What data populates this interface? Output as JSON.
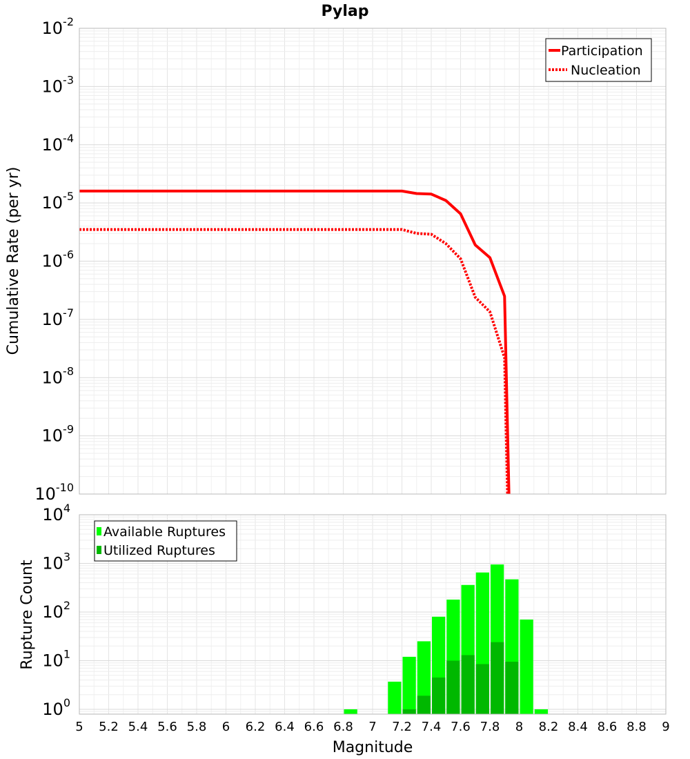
{
  "chart_data": [
    {
      "type": "line",
      "title": "Pylap",
      "xlabel": "",
      "ylabel": "Cumulative Rate (per yr)",
      "xlim": [
        5,
        9
      ],
      "ylim_log10": [
        -10,
        -2
      ],
      "y_tick_exponents": [
        "-10",
        "-9",
        "-8",
        "-7",
        "-6",
        "-5",
        "-4",
        "-3",
        "-2"
      ],
      "legend_position": "top-right",
      "series": [
        {
          "name": "Participation",
          "color": "#ff0000",
          "dash": "solid",
          "x": [
            5.0,
            7.2,
            7.3,
            7.4,
            7.5,
            7.6,
            7.7,
            7.8,
            7.9,
            7.93
          ],
          "y": [
            1.6e-05,
            1.6e-05,
            1.45e-05,
            1.42e-05,
            1.1e-05,
            6.5e-06,
            1.9e-06,
            1.15e-06,
            2.5e-07,
            1e-10
          ]
        },
        {
          "name": "Nucleation",
          "color": "#ff0000",
          "dash": "dotted",
          "x": [
            5.0,
            7.2,
            7.3,
            7.4,
            7.5,
            7.6,
            7.7,
            7.8,
            7.9,
            7.92
          ],
          "y": [
            3.5e-06,
            3.5e-06,
            3e-06,
            2.9e-06,
            2e-06,
            1.1e-06,
            2.4e-07,
            1.35e-07,
            2.2e-08,
            1e-10
          ]
        }
      ]
    },
    {
      "type": "bar",
      "title": "",
      "xlabel": "Magnitude",
      "ylabel": "Rupture Count",
      "xlim": [
        5,
        9
      ],
      "ylim_log10": [
        -0.1,
        4
      ],
      "x_ticks": [
        "5",
        "5.2",
        "5.4",
        "5.6",
        "5.8",
        "6",
        "6.2",
        "6.4",
        "6.6",
        "6.8",
        "7",
        "7.2",
        "7.4",
        "7.6",
        "7.8",
        "8",
        "8.2",
        "8.4",
        "8.6",
        "8.8",
        "9"
      ],
      "y_tick_exponents": [
        "0",
        "1",
        "2",
        "3",
        "4"
      ],
      "legend_position": "top-left",
      "bin_width": 0.1,
      "series": [
        {
          "name": "Available Ruptures",
          "color": "#00ff00",
          "x": [
            6.85,
            7.15,
            7.25,
            7.35,
            7.45,
            7.55,
            7.65,
            7.75,
            7.85,
            7.95,
            8.05,
            8.15
          ],
          "values": [
            1,
            3.7,
            12,
            25,
            80,
            180,
            360,
            650,
            950,
            470,
            70,
            1
          ]
        },
        {
          "name": "Utilized Ruptures",
          "color": "#00b800",
          "x": [
            7.25,
            7.35,
            7.45,
            7.55,
            7.65,
            7.75,
            7.85,
            7.95
          ],
          "values": [
            1,
            1.9,
            4.5,
            10,
            13,
            8.5,
            24,
            9.5
          ]
        }
      ]
    }
  ]
}
